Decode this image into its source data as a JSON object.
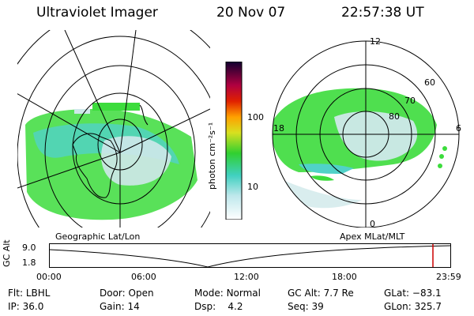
{
  "header": {
    "title": "Ultraviolet Imager",
    "date": "20 Nov 07",
    "time": "22:57:38 UT"
  },
  "colorbar": {
    "unit_label": "photon cm⁻²s⁻¹",
    "ticks": [
      "100",
      "10"
    ]
  },
  "left_panel": {
    "caption": "Geographic Lat/Lon"
  },
  "right_panel": {
    "caption": "Apex MLat/MLT",
    "mlt_labels": {
      "top": "12",
      "left": "18",
      "right": "6",
      "bottom": "0"
    },
    "lat_labels": [
      "60",
      "70",
      "80"
    ]
  },
  "timeline": {
    "axis_label": "GC Alt",
    "y_labels": [
      "9.0",
      "1.8"
    ],
    "time_ticks": [
      "00:00",
      "06:00",
      "12:00",
      "18:00",
      "23:59"
    ]
  },
  "status": {
    "flt": {
      "label": "Flt:",
      "value": "LBHL"
    },
    "ip": {
      "label": "IP:",
      "value": "36.0"
    },
    "door": {
      "label": "Door:",
      "value": "Open"
    },
    "gain": {
      "label": "Gain:",
      "value": "14"
    },
    "mode": {
      "label": "Mode:",
      "value": "Normal"
    },
    "dsp": {
      "label": "Dsp:",
      "value": "4.2"
    },
    "gcalt": {
      "label": "GC Alt:",
      "value": "7.7 Re"
    },
    "seq": {
      "label": "Seq:",
      "value": "39"
    },
    "glat": {
      "label": "GLat:",
      "value": "−83.1"
    },
    "glon": {
      "label": "GLon:",
      "value": "325.7"
    }
  },
  "colors": {
    "aurora_green": "#3cdc3c",
    "aurora_cyan": "#50d2c8",
    "aurora_pale": "#cfe8ea",
    "marker_red": "#cc0000"
  }
}
